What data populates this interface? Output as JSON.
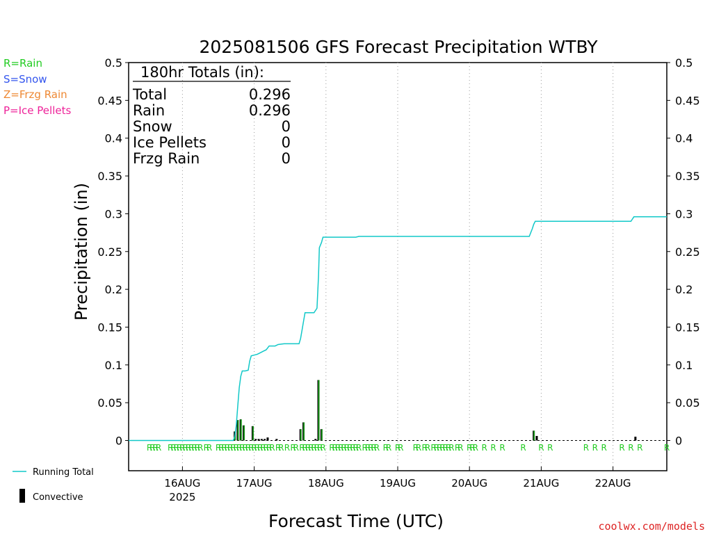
{
  "colors": {
    "rain": "#22cc22",
    "snow": "#3355ee",
    "frzg": "#ee8833",
    "ice": "#ee2299",
    "running_total": "#11c8c8",
    "convective": "#000000",
    "credit": "#dd2222"
  },
  "legend_left": {
    "rain": "R=Rain",
    "snow": "S=Snow",
    "frzg": "Z=Frzg Rain",
    "ice": "P=Ice Pellets"
  },
  "legend_bottom": {
    "running_total": "Running Total",
    "convective": "Convective"
  },
  "credit": "coolwx.com/models",
  "totals_box": {
    "heading": "180hr Totals (in):",
    "rows": [
      {
        "label": "Total",
        "value": "0.296"
      },
      {
        "label": "Rain",
        "value": "0.296"
      },
      {
        "label": "Snow",
        "value": "0"
      },
      {
        "label": "Ice Pellets",
        "value": "0"
      },
      {
        "label": "Frzg Rain",
        "value": "0"
      }
    ]
  },
  "chart_data": {
    "type": "bar",
    "title": "2025081506 GFS Forecast Precipitation WTBY",
    "xlabel": "Forecast Time (UTC)",
    "ylabel": "Precipitation (in)",
    "ylim": [
      -0.04,
      0.5
    ],
    "xlim_hours": [
      -18,
      162
    ],
    "y_ticks": [
      0,
      0.05,
      0.1,
      0.15,
      0.2,
      0.25,
      0.3,
      0.35,
      0.4,
      0.45,
      0.5
    ],
    "y_tick_labels": [
      "0",
      "0.05",
      "0.1",
      "0.15",
      "0.2",
      "0.25",
      "0.3",
      "0.35",
      "0.4",
      "0.45",
      "0.5"
    ],
    "x_ticks": [
      {
        "hour": 0,
        "label": "16AUG",
        "sublabel": "2025"
      },
      {
        "hour": 24,
        "label": "17AUG",
        "sublabel": ""
      },
      {
        "hour": 48,
        "label": "18AUG",
        "sublabel": ""
      },
      {
        "hour": 72,
        "label": "19AUG",
        "sublabel": ""
      },
      {
        "hour": 96,
        "label": "20AUG",
        "sublabel": ""
      },
      {
        "hour": 120,
        "label": "21AUG",
        "sublabel": ""
      },
      {
        "hour": 144,
        "label": "22AUG",
        "sublabel": ""
      }
    ],
    "grid": "vertical dotted at day boundaries",
    "series": [
      {
        "name": "Running Total",
        "kind": "line",
        "points": [
          [
            -18,
            0
          ],
          [
            17,
            0
          ],
          [
            17.5,
            0.005
          ],
          [
            18,
            0.02
          ],
          [
            18.5,
            0.045
          ],
          [
            19,
            0.07
          ],
          [
            19.5,
            0.085
          ],
          [
            20,
            0.092
          ],
          [
            21,
            0.092
          ],
          [
            22,
            0.093
          ],
          [
            22.5,
            0.105
          ],
          [
            23,
            0.112
          ],
          [
            24,
            0.113
          ],
          [
            25,
            0.114
          ],
          [
            26,
            0.116
          ],
          [
            27,
            0.118
          ],
          [
            28,
            0.12
          ],
          [
            29,
            0.125
          ],
          [
            31,
            0.125
          ],
          [
            32,
            0.127
          ],
          [
            34,
            0.128
          ],
          [
            39,
            0.128
          ],
          [
            39.5,
            0.135
          ],
          [
            40,
            0.146
          ],
          [
            40.5,
            0.158
          ],
          [
            41,
            0.169
          ],
          [
            44,
            0.169
          ],
          [
            45,
            0.175
          ],
          [
            45.5,
            0.218
          ],
          [
            45.8,
            0.255
          ],
          [
            46.5,
            0.262
          ],
          [
            47,
            0.269
          ],
          [
            58,
            0.269
          ],
          [
            59,
            0.27
          ],
          [
            116,
            0.27
          ],
          [
            117,
            0.28
          ],
          [
            117.5,
            0.286
          ],
          [
            118,
            0.29
          ],
          [
            150,
            0.29
          ],
          [
            151,
            0.296
          ],
          [
            162,
            0.296
          ]
        ]
      },
      {
        "name": "Rain",
        "kind": "bar",
        "values": [
          [
            17.5,
            0.012
          ],
          [
            18.5,
            0.027
          ],
          [
            19.5,
            0.028
          ],
          [
            20.5,
            0.02
          ],
          [
            23.5,
            0.019
          ],
          [
            24.5,
            0.002
          ],
          [
            25.5,
            0.002
          ],
          [
            26.5,
            0.002
          ],
          [
            27.5,
            0.002
          ],
          [
            28.5,
            0.004
          ],
          [
            31.5,
            0.002
          ],
          [
            39.5,
            0.015
          ],
          [
            40.5,
            0.024
          ],
          [
            44.5,
            0.002
          ],
          [
            45.5,
            0.08
          ],
          [
            46.5,
            0.015
          ],
          [
            117.5,
            0.013
          ],
          [
            118.5,
            0.006
          ],
          [
            151.5,
            0.005
          ]
        ]
      }
    ],
    "precip_type_markers": {
      "symbol": "R",
      "hours": [
        -11,
        -10,
        -9,
        -8,
        -4,
        -3,
        -2,
        -1,
        0,
        1,
        2,
        3,
        4,
        5,
        6,
        8,
        9,
        12,
        13,
        14,
        15,
        16,
        17,
        18,
        19,
        20,
        21,
        22,
        23,
        24,
        25,
        26,
        27,
        28,
        29,
        30,
        32,
        33,
        35,
        37,
        38,
        40,
        41,
        42,
        43,
        44,
        45,
        46,
        47,
        50,
        51,
        52,
        53,
        54,
        55,
        56,
        57,
        58,
        59,
        61,
        62,
        63,
        64,
        65,
        68,
        69,
        72,
        73,
        78,
        79,
        81,
        82,
        84,
        85,
        86,
        87,
        88,
        89,
        90,
        92,
        93,
        96,
        97,
        98,
        101,
        104,
        107,
        114,
        120,
        123,
        135,
        138,
        141,
        147,
        150,
        153,
        162
      ]
    }
  }
}
